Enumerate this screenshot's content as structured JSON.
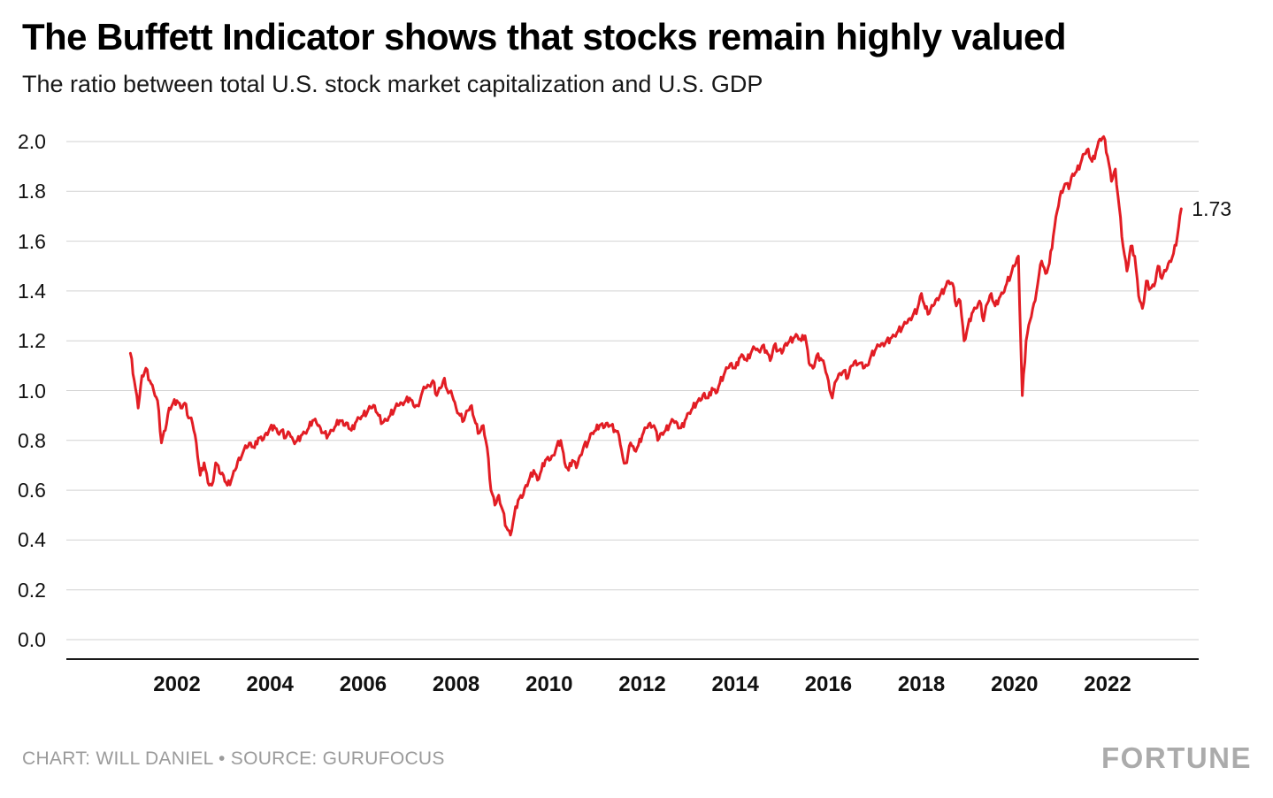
{
  "title": "The Buffett Indicator shows that stocks remain highly valued",
  "subtitle": "The ratio between total U.S. stock market capitalization and U.S. GDP",
  "footer": {
    "credit": "CHART: WILL DANIEL • SOURCE: GURUFOCUS",
    "logo": "FORTUNE"
  },
  "chart_data": {
    "type": "line",
    "title": "The Buffett Indicator shows that stocks remain highly valued",
    "subtitle": "The ratio between total U.S. stock market capitalization and U.S. GDP",
    "series_name": "U.S. total stock market capitalization / U.S. GDP",
    "xlabel": "",
    "ylabel": "",
    "grid": "horizontal",
    "legend": "none",
    "line_color": "#e21d24",
    "end_label": "1.73",
    "end_value": 1.73,
    "ylim": [
      0.0,
      2.0
    ],
    "y_ticks": [
      0.0,
      0.2,
      0.4,
      0.6,
      0.8,
      1.0,
      1.2,
      1.4,
      1.6,
      1.8,
      2.0
    ],
    "x_ticks": [
      2002,
      2004,
      2006,
      2008,
      2010,
      2012,
      2014,
      2016,
      2018,
      2020,
      2022
    ],
    "x_start": 2001.0,
    "x_step": 0.0833333,
    "values": [
      1.15,
      1.04,
      0.93,
      1.06,
      1.09,
      1.04,
      1.0,
      0.96,
      0.79,
      0.84,
      0.93,
      0.95,
      0.96,
      0.93,
      0.95,
      0.89,
      0.87,
      0.79,
      0.66,
      0.71,
      0.63,
      0.62,
      0.71,
      0.67,
      0.66,
      0.62,
      0.64,
      0.68,
      0.73,
      0.75,
      0.77,
      0.79,
      0.77,
      0.81,
      0.8,
      0.83,
      0.85,
      0.86,
      0.83,
      0.84,
      0.81,
      0.83,
      0.8,
      0.8,
      0.82,
      0.83,
      0.85,
      0.88,
      0.87,
      0.85,
      0.83,
      0.82,
      0.84,
      0.86,
      0.88,
      0.86,
      0.87,
      0.84,
      0.87,
      0.89,
      0.9,
      0.91,
      0.93,
      0.94,
      0.9,
      0.87,
      0.88,
      0.9,
      0.92,
      0.94,
      0.95,
      0.96,
      0.97,
      0.94,
      0.94,
      0.98,
      1.01,
      1.02,
      1.04,
      0.98,
      1.01,
      1.05,
      0.99,
      0.98,
      0.93,
      0.9,
      0.88,
      0.92,
      0.94,
      0.87,
      0.83,
      0.86,
      0.77,
      0.6,
      0.54,
      0.58,
      0.52,
      0.45,
      0.42,
      0.5,
      0.56,
      0.57,
      0.62,
      0.65,
      0.68,
      0.64,
      0.68,
      0.72,
      0.72,
      0.74,
      0.78,
      0.8,
      0.71,
      0.68,
      0.72,
      0.69,
      0.74,
      0.78,
      0.79,
      0.83,
      0.84,
      0.86,
      0.85,
      0.87,
      0.86,
      0.84,
      0.82,
      0.73,
      0.71,
      0.79,
      0.76,
      0.78,
      0.82,
      0.85,
      0.87,
      0.86,
      0.8,
      0.83,
      0.84,
      0.86,
      0.88,
      0.87,
      0.85,
      0.88,
      0.91,
      0.93,
      0.95,
      0.96,
      0.99,
      0.97,
      1.01,
      0.99,
      1.03,
      1.06,
      1.09,
      1.11,
      1.09,
      1.13,
      1.14,
      1.12,
      1.15,
      1.17,
      1.16,
      1.18,
      1.16,
      1.12,
      1.18,
      1.16,
      1.15,
      1.19,
      1.2,
      1.21,
      1.22,
      1.2,
      1.22,
      1.11,
      1.09,
      1.14,
      1.13,
      1.1,
      1.04,
      0.97,
      1.04,
      1.07,
      1.08,
      1.05,
      1.1,
      1.12,
      1.11,
      1.09,
      1.1,
      1.14,
      1.16,
      1.18,
      1.19,
      1.2,
      1.21,
      1.22,
      1.24,
      1.25,
      1.27,
      1.29,
      1.31,
      1.33,
      1.39,
      1.33,
      1.31,
      1.34,
      1.37,
      1.39,
      1.41,
      1.44,
      1.43,
      1.34,
      1.36,
      1.2,
      1.26,
      1.31,
      1.33,
      1.36,
      1.28,
      1.35,
      1.39,
      1.34,
      1.37,
      1.39,
      1.43,
      1.46,
      1.5,
      1.54,
      0.98,
      1.2,
      1.28,
      1.35,
      1.43,
      1.52,
      1.47,
      1.51,
      1.62,
      1.72,
      1.8,
      1.83,
      1.81,
      1.87,
      1.88,
      1.91,
      1.95,
      1.97,
      1.92,
      1.96,
      2.01,
      2.02,
      1.94,
      1.84,
      1.89,
      1.74,
      1.58,
      1.48,
      1.58,
      1.54,
      1.38,
      1.33,
      1.44,
      1.41,
      1.42,
      1.5,
      1.45,
      1.48,
      1.52,
      1.55,
      1.62,
      1.73
    ]
  }
}
